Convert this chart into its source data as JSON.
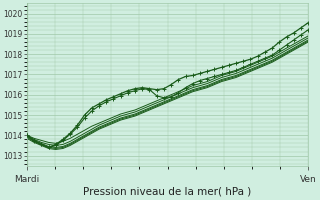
{
  "bg_color": "#d0eee0",
  "plot_bg_color": "#d0eee0",
  "grid_color": "#a0c8a8",
  "line_color": "#1a5c1a",
  "title": "Pression niveau de la mer( hPa )",
  "xlabel_left": "Mardi",
  "xlabel_right": "Ven",
  "ylim": [
    1012.5,
    1020.5
  ],
  "yticks": [
    1013,
    1014,
    1015,
    1016,
    1017,
    1018,
    1019,
    1020
  ],
  "series": [
    [
      1014.0,
      1013.85,
      1013.75,
      1013.65,
      1013.6,
      1013.7,
      1013.85,
      1014.05,
      1014.25,
      1014.45,
      1014.6,
      1014.75,
      1014.9,
      1015.05,
      1015.15,
      1015.25,
      1015.4,
      1015.55,
      1015.7,
      1015.85,
      1016.0,
      1016.15,
      1016.3,
      1016.45,
      1016.55,
      1016.65,
      1016.8,
      1016.95,
      1017.05,
      1017.15,
      1017.3,
      1017.45,
      1017.6,
      1017.75,
      1017.9,
      1018.1,
      1018.3,
      1018.5,
      1018.7,
      1018.9
    ],
    [
      1014.0,
      1013.8,
      1013.65,
      1013.55,
      1013.5,
      1013.55,
      1013.7,
      1013.9,
      1014.1,
      1014.3,
      1014.5,
      1014.65,
      1014.8,
      1014.95,
      1015.05,
      1015.15,
      1015.3,
      1015.45,
      1015.6,
      1015.75,
      1015.9,
      1016.05,
      1016.2,
      1016.35,
      1016.45,
      1016.55,
      1016.7,
      1016.85,
      1016.95,
      1017.05,
      1017.2,
      1017.35,
      1017.5,
      1017.65,
      1017.8,
      1018.0,
      1018.2,
      1018.4,
      1018.6,
      1018.8
    ],
    [
      1013.95,
      1013.75,
      1013.6,
      1013.45,
      1013.4,
      1013.45,
      1013.6,
      1013.8,
      1014.0,
      1014.2,
      1014.4,
      1014.55,
      1014.7,
      1014.85,
      1014.95,
      1015.05,
      1015.2,
      1015.35,
      1015.5,
      1015.65,
      1015.8,
      1015.95,
      1016.1,
      1016.25,
      1016.35,
      1016.45,
      1016.6,
      1016.75,
      1016.85,
      1016.95,
      1017.1,
      1017.25,
      1017.4,
      1017.55,
      1017.7,
      1017.9,
      1018.1,
      1018.3,
      1018.5,
      1018.7
    ],
    [
      1013.9,
      1013.7,
      1013.55,
      1013.4,
      1013.35,
      1013.4,
      1013.55,
      1013.75,
      1013.95,
      1014.15,
      1014.35,
      1014.5,
      1014.65,
      1014.8,
      1014.9,
      1015.0,
      1015.15,
      1015.3,
      1015.45,
      1015.6,
      1015.75,
      1015.9,
      1016.05,
      1016.2,
      1016.3,
      1016.4,
      1016.55,
      1016.7,
      1016.8,
      1016.9,
      1017.05,
      1017.2,
      1017.35,
      1017.5,
      1017.65,
      1017.85,
      1018.05,
      1018.25,
      1018.45,
      1018.65
    ],
    [
      1013.85,
      1013.65,
      1013.5,
      1013.35,
      1013.3,
      1013.35,
      1013.5,
      1013.7,
      1013.9,
      1014.1,
      1014.3,
      1014.45,
      1014.6,
      1014.75,
      1014.85,
      1014.95,
      1015.1,
      1015.25,
      1015.4,
      1015.55,
      1015.7,
      1015.85,
      1016.0,
      1016.15,
      1016.25,
      1016.35,
      1016.5,
      1016.65,
      1016.75,
      1016.85,
      1017.0,
      1017.15,
      1017.3,
      1017.45,
      1017.6,
      1017.8,
      1018.0,
      1018.2,
      1018.4,
      1018.6
    ]
  ],
  "main_series": [
    1014.0,
    1013.7,
    1013.55,
    1013.4,
    1013.55,
    1013.8,
    1014.1,
    1014.5,
    1015.0,
    1015.35,
    1015.55,
    1015.75,
    1015.9,
    1016.05,
    1016.2,
    1016.3,
    1016.35,
    1016.3,
    1016.25,
    1016.3,
    1016.5,
    1016.75,
    1016.9,
    1016.95,
    1017.05,
    1017.15,
    1017.25,
    1017.35,
    1017.45,
    1017.55,
    1017.65,
    1017.75,
    1017.9,
    1018.1,
    1018.3,
    1018.6,
    1018.85,
    1019.05,
    1019.3,
    1019.55
  ],
  "peaked_series": [
    1014.0,
    1013.75,
    1013.55,
    1013.4,
    1013.5,
    1013.75,
    1014.05,
    1014.4,
    1014.85,
    1015.2,
    1015.45,
    1015.65,
    1015.8,
    1015.95,
    1016.1,
    1016.2,
    1016.3,
    1016.25,
    1015.95,
    1015.85,
    1015.9,
    1016.1,
    1016.35,
    1016.55,
    1016.7,
    1016.8,
    1016.9,
    1017.0,
    1017.1,
    1017.2,
    1017.35,
    1017.5,
    1017.65,
    1017.8,
    1017.95,
    1018.2,
    1018.45,
    1018.7,
    1018.95,
    1019.2
  ],
  "line_width": 0.7,
  "marker_size": 2.8,
  "font_size_tick": 5.5,
  "font_size_label": 6.5,
  "title_fontsize": 7.5
}
